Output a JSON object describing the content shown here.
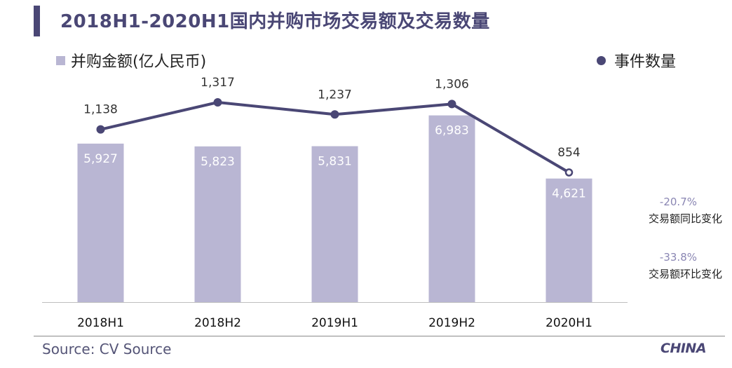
{
  "title": "2018H1-2020H1国内并购市场交易额及交易数量",
  "legend": {
    "bar_label": "并购金额(亿人民币)",
    "line_label": "事件数量"
  },
  "colors": {
    "bar": "#b9b6d3",
    "line": "#4a4775",
    "title": "#4a4775",
    "pct": "#8a86b3"
  },
  "chart_data": {
    "type": "bar+line",
    "categories": [
      "2018H1",
      "2018H2",
      "2019H1",
      "2019H2",
      "2020H1"
    ],
    "series": [
      {
        "name": "并购金额(亿人民币)",
        "type": "bar",
        "values": [
          5927,
          5823,
          5831,
          6983,
          4621
        ],
        "labels": [
          "5,927",
          "5,823",
          "5,831",
          "6,983",
          "4,621"
        ]
      },
      {
        "name": "事件数量",
        "type": "line",
        "values": [
          1138,
          1317,
          1237,
          1306,
          854
        ],
        "labels": [
          "1,138",
          "1,317",
          "1,237",
          "1,306",
          "854"
        ]
      }
    ],
    "title": "2018H1-2020H1国内并购市场交易额及交易数量",
    "xlabel": "",
    "ylabel": ""
  },
  "annotations": [
    {
      "pct": "-20.7%",
      "label": "交易额同比变化"
    },
    {
      "pct": "-33.8%",
      "label": "交易额环比变化"
    }
  ],
  "source": "Source: CV Source",
  "logo": "CHINA"
}
